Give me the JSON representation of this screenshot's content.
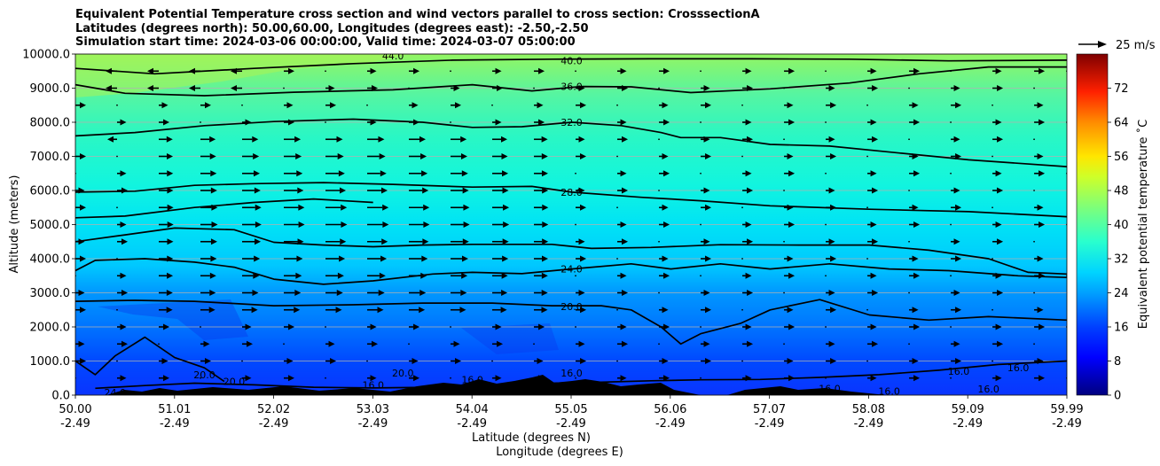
{
  "title_lines": [
    "Equivalent Potential Temperature cross section and wind vectors parallel to cross section: CrosssectionA",
    "Latitudes (degrees north): 50.00,60.00, Longitudes (degrees east): -2.50,-2.50",
    "Simulation start time: 2024-03-06 00:00:00, Valid time: 2024-03-07 05:00:00"
  ],
  "chart_data": {
    "type": "heatmap",
    "subtype": "filled contour cross-section with wind vectors and labeled contour lines",
    "xlabel": "Latitude (degrees N)",
    "xlabel2": "Longitude (degrees E)",
    "ylabel": "Altitude (meters)",
    "x_tick_labels": [
      "50.00",
      "51.01",
      "52.02",
      "53.03",
      "54.04",
      "55.05",
      "56.06",
      "57.07",
      "58.08",
      "59.09",
      "59.99"
    ],
    "x_tick_labels2": [
      "-2.49",
      "-2.49",
      "-2.49",
      "-2.49",
      "-2.49",
      "-2.49",
      "-2.49",
      "-2.49",
      "-2.49",
      "-2.49",
      "-2.49"
    ],
    "x_range": [
      50.0,
      59.99
    ],
    "ylim": [
      0,
      10000
    ],
    "y_ticks": [
      "0.0",
      "1000.0",
      "2000.0",
      "3000.0",
      "4000.0",
      "5000.0",
      "6000.0",
      "7000.0",
      "8000.0",
      "9000.0",
      "10000.0"
    ],
    "grid": "horizontal",
    "colorbar": {
      "label": "Equivalent potential temperature ˚C",
      "range": [
        0,
        80
      ],
      "ticks": [
        "0",
        "8",
        "16",
        "24",
        "32",
        "40",
        "48",
        "56",
        "64",
        "72"
      ],
      "colormap": "jet"
    },
    "wind_key": "25 m/s",
    "contour_labels": [
      {
        "text": "44.0",
        "x": 53.2,
        "y": 9950
      },
      {
        "text": "40.0",
        "x": 55.0,
        "y": 9800
      },
      {
        "text": "36.0",
        "x": 55.0,
        "y": 9050
      },
      {
        "text": "32.0",
        "x": 55.0,
        "y": 8000
      },
      {
        "text": "28.0",
        "x": 55.0,
        "y": 5950
      },
      {
        "text": "24.0",
        "x": 55.0,
        "y": 3700
      },
      {
        "text": "20.0",
        "x": 55.0,
        "y": 2600
      },
      {
        "text": "16.0",
        "x": 55.0,
        "y": 650
      },
      {
        "text": "24.0",
        "x": 50.4,
        "y": 80
      },
      {
        "text": "20.0",
        "x": 51.3,
        "y": 600
      },
      {
        "text": "20.0",
        "x": 51.6,
        "y": 400
      },
      {
        "text": "20.0",
        "x": 53.3,
        "y": 650
      },
      {
        "text": "16.0",
        "x": 53.0,
        "y": 300
      },
      {
        "text": "16.0",
        "x": 53.4,
        "y": 80
      },
      {
        "text": "16.0",
        "x": 54.0,
        "y": 450
      },
      {
        "text": "16.0",
        "x": 57.6,
        "y": 200
      },
      {
        "text": "16.0",
        "x": 58.2,
        "y": 120
      },
      {
        "text": "16.0",
        "x": 58.9,
        "y": 700
      },
      {
        "text": "16.0",
        "x": 59.5,
        "y": 800
      },
      {
        "text": "16.0",
        "x": 59.2,
        "y": 180
      }
    ],
    "contours": [
      {
        "level": 40,
        "points": [
          [
            50.0,
            9580
          ],
          [
            50.8,
            9420
          ],
          [
            51.8,
            9580
          ],
          [
            52.8,
            9720
          ],
          [
            53.8,
            9820
          ],
          [
            54.8,
            9850
          ],
          [
            55.8,
            9860
          ],
          [
            56.8,
            9860
          ],
          [
            57.8,
            9850
          ],
          [
            58.8,
            9800
          ],
          [
            59.99,
            9820
          ]
        ]
      },
      {
        "level": 36,
        "points": [
          [
            50.0,
            9100
          ],
          [
            50.5,
            8850
          ],
          [
            51.3,
            8780
          ],
          [
            52.2,
            8880
          ],
          [
            53.2,
            8950
          ],
          [
            54.0,
            9100
          ],
          [
            54.6,
            8920
          ],
          [
            55.1,
            9050
          ],
          [
            55.6,
            9040
          ],
          [
            56.2,
            8870
          ],
          [
            57.0,
            8980
          ],
          [
            57.8,
            9150
          ],
          [
            58.5,
            9420
          ],
          [
            59.2,
            9620
          ],
          [
            59.99,
            9620
          ]
        ]
      },
      {
        "level": 32,
        "points": [
          [
            50.0,
            7600
          ],
          [
            50.6,
            7700
          ],
          [
            51.3,
            7900
          ],
          [
            52.0,
            8020
          ],
          [
            52.8,
            8090
          ],
          [
            53.5,
            8000
          ],
          [
            54.0,
            7850
          ],
          [
            54.5,
            7870
          ],
          [
            55.0,
            8000
          ],
          [
            55.5,
            7900
          ],
          [
            55.9,
            7700
          ],
          [
            56.1,
            7550
          ],
          [
            56.5,
            7550
          ],
          [
            57.0,
            7350
          ],
          [
            57.6,
            7300
          ],
          [
            58.3,
            7100
          ],
          [
            59.0,
            6900
          ],
          [
            59.99,
            6700
          ]
        ]
      },
      {
        "level": 28,
        "points": [
          [
            50.0,
            5950
          ],
          [
            50.6,
            5980
          ],
          [
            51.2,
            6150
          ],
          [
            51.8,
            6200
          ],
          [
            52.5,
            6230
          ],
          [
            53.2,
            6180
          ],
          [
            54.0,
            6100
          ],
          [
            54.6,
            6120
          ],
          [
            55.0,
            5950
          ],
          [
            55.7,
            5800
          ],
          [
            56.3,
            5700
          ],
          [
            57.0,
            5550
          ],
          [
            58.0,
            5450
          ],
          [
            59.0,
            5380
          ],
          [
            59.99,
            5230
          ]
        ]
      },
      {
        "level": 26,
        "points": [
          [
            50.0,
            5200
          ],
          [
            50.5,
            5250
          ],
          [
            51.2,
            5500
          ],
          [
            51.8,
            5650
          ],
          [
            52.4,
            5750
          ],
          [
            53.0,
            5650
          ]
        ]
      },
      {
        "level": 25,
        "points": [
          [
            50.0,
            4500
          ],
          [
            50.5,
            4700
          ],
          [
            51.0,
            4900
          ],
          [
            51.6,
            4850
          ],
          [
            52.0,
            4480
          ],
          [
            52.5,
            4400
          ],
          [
            53.0,
            4350
          ],
          [
            53.5,
            4400
          ],
          [
            54.0,
            4420
          ],
          [
            54.8,
            4420
          ],
          [
            55.2,
            4300
          ],
          [
            55.8,
            4330
          ],
          [
            56.5,
            4410
          ],
          [
            57.3,
            4400
          ],
          [
            58.0,
            4400
          ],
          [
            58.6,
            4250
          ],
          [
            59.2,
            4000
          ],
          [
            59.6,
            3600
          ],
          [
            59.99,
            3550
          ]
        ]
      },
      {
        "level": 24,
        "points": [
          [
            50.0,
            3650
          ],
          [
            50.2,
            3950
          ],
          [
            50.7,
            4000
          ],
          [
            51.2,
            3900
          ],
          [
            51.6,
            3750
          ],
          [
            52.0,
            3400
          ],
          [
            52.5,
            3250
          ],
          [
            53.0,
            3350
          ],
          [
            53.6,
            3550
          ],
          [
            54.0,
            3600
          ],
          [
            54.5,
            3560
          ],
          [
            55.0,
            3700
          ],
          [
            55.6,
            3850
          ],
          [
            56.0,
            3700
          ],
          [
            56.5,
            3850
          ],
          [
            57.0,
            3700
          ],
          [
            57.6,
            3850
          ],
          [
            58.2,
            3700
          ],
          [
            58.8,
            3650
          ],
          [
            59.5,
            3500
          ],
          [
            59.99,
            3450
          ]
        ]
      },
      {
        "level": 20,
        "points": [
          [
            50.0,
            2750
          ],
          [
            50.6,
            2780
          ],
          [
            51.2,
            2750
          ],
          [
            52.0,
            2620
          ],
          [
            52.8,
            2650
          ],
          [
            53.5,
            2700
          ],
          [
            54.2,
            2700
          ],
          [
            54.8,
            2620
          ],
          [
            55.3,
            2620
          ],
          [
            55.6,
            2500
          ],
          [
            55.9,
            2000
          ],
          [
            56.1,
            1500
          ],
          [
            56.3,
            1800
          ],
          [
            56.7,
            2100
          ],
          [
            57.0,
            2500
          ],
          [
            57.5,
            2800
          ],
          [
            58.0,
            2350
          ],
          [
            58.6,
            2200
          ],
          [
            59.2,
            2300
          ],
          [
            59.99,
            2200
          ]
        ]
      },
      {
        "level": 16,
        "points": [
          [
            50.2,
            200
          ],
          [
            50.7,
            280
          ],
          [
            51.2,
            350
          ],
          [
            51.8,
            300
          ],
          [
            52.4,
            230
          ],
          [
            53.0,
            210
          ],
          [
            53.6,
            230
          ],
          [
            54.2,
            260
          ],
          [
            54.8,
            350
          ],
          [
            55.3,
            380
          ],
          [
            55.8,
            420
          ],
          [
            56.3,
            450
          ],
          [
            56.9,
            460
          ],
          [
            57.5,
            520
          ],
          [
            58.1,
            600
          ],
          [
            58.7,
            730
          ],
          [
            59.3,
            900
          ],
          [
            59.99,
            1000
          ]
        ]
      },
      {
        "level": 20,
        "points": [
          [
            50.0,
            1000
          ],
          [
            50.2,
            600
          ],
          [
            50.4,
            1150
          ],
          [
            50.7,
            1700
          ],
          [
            51.0,
            1100
          ],
          [
            51.3,
            800
          ],
          [
            51.5,
            400
          ]
        ]
      }
    ],
    "wind_columns_x": [
      50.0,
      50.42,
      50.84,
      51.26,
      51.68,
      52.1,
      52.52,
      52.94,
      53.36,
      53.78,
      54.2,
      54.62,
      55.04,
      55.46,
      55.88,
      56.3,
      56.72,
      57.14,
      57.56,
      57.98,
      58.4,
      58.82,
      59.24,
      59.66,
      59.99
    ],
    "wind_rows_y": [
      9500,
      9000,
      8500,
      8000,
      7500,
      7000,
      6500,
      6000,
      5500,
      5000,
      4500,
      4000,
      3500,
      3000,
      2500,
      2000,
      1500,
      1000,
      500
    ]
  }
}
